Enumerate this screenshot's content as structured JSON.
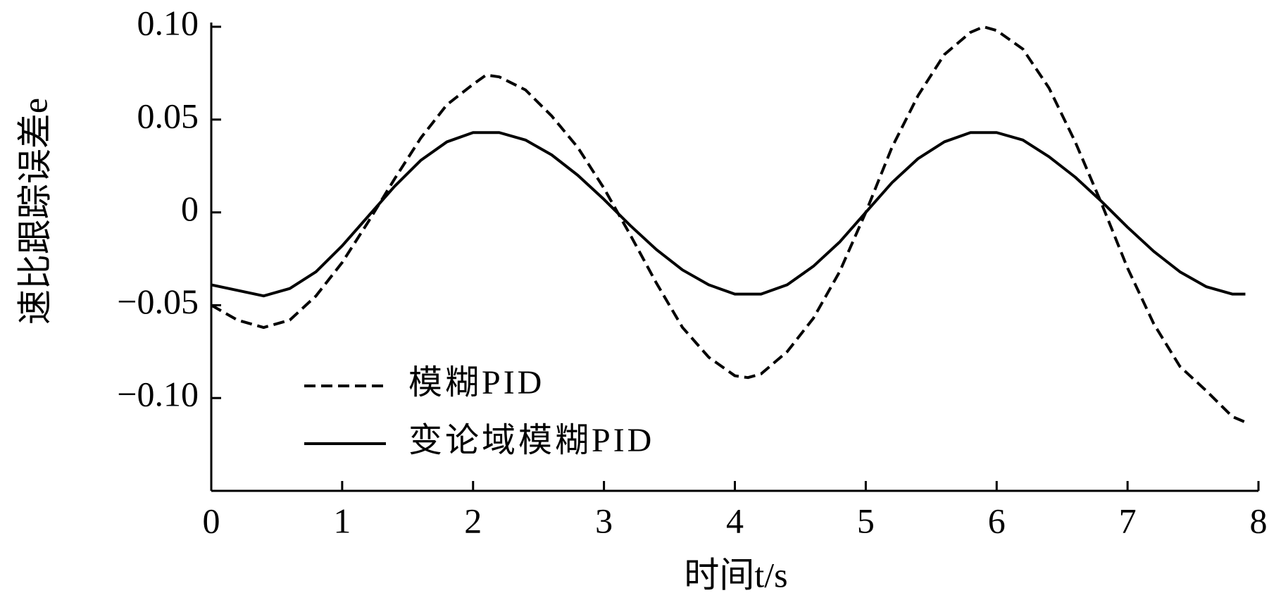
{
  "chart_data": {
    "type": "line",
    "xlabel": "时间t/s",
    "ylabel": "速比跟踪误差e",
    "x": [
      0,
      0.2,
      0.4,
      0.6,
      0.8,
      1.0,
      1.2,
      1.4,
      1.6,
      1.8,
      2.0,
      2.1,
      2.2,
      2.4,
      2.6,
      2.8,
      3.0,
      3.2,
      3.4,
      3.6,
      3.8,
      4.0,
      4.1,
      4.2,
      4.4,
      4.6,
      4.8,
      5.0,
      5.2,
      5.4,
      5.6,
      5.8,
      5.9,
      6.0,
      6.2,
      6.4,
      6.6,
      6.8,
      7.0,
      7.2,
      7.4,
      7.6,
      7.8,
      7.9
    ],
    "series": [
      {
        "name": "模糊PID",
        "color": "#000000",
        "dash": true,
        "values": [
          -0.05,
          -0.058,
          -0.062,
          -0.058,
          -0.045,
          -0.027,
          -0.005,
          0.018,
          0.04,
          0.058,
          0.069,
          0.074,
          0.073,
          0.066,
          0.052,
          0.035,
          0.013,
          -0.012,
          -0.038,
          -0.062,
          -0.078,
          -0.088,
          -0.089,
          -0.087,
          -0.075,
          -0.057,
          -0.032,
          0.0,
          0.035,
          0.063,
          0.085,
          0.097,
          0.1,
          0.098,
          0.088,
          0.067,
          0.038,
          0.005,
          -0.03,
          -0.06,
          -0.083,
          -0.096,
          -0.11,
          -0.113
        ]
      },
      {
        "name": "变论域模糊PID",
        "color": "#000000",
        "dash": false,
        "values": [
          -0.039,
          -0.042,
          -0.045,
          -0.041,
          -0.032,
          -0.018,
          -0.002,
          0.014,
          0.028,
          0.038,
          0.043,
          0.043,
          0.043,
          0.039,
          0.031,
          0.02,
          0.007,
          -0.007,
          -0.02,
          -0.031,
          -0.039,
          -0.044,
          -0.044,
          -0.044,
          -0.039,
          -0.029,
          -0.016,
          0.0,
          0.016,
          0.029,
          0.038,
          0.043,
          0.043,
          0.043,
          0.039,
          0.03,
          0.019,
          0.006,
          -0.008,
          -0.021,
          -0.032,
          -0.04,
          -0.044,
          -0.044
        ]
      }
    ],
    "xlim": [
      0,
      8
    ],
    "xticks": [
      0,
      1,
      2,
      3,
      4,
      5,
      6,
      7,
      8
    ],
    "ylim": [
      -0.15,
      0.1
    ],
    "yticks": [
      {
        "value": 0.1,
        "label": "0.10"
      },
      {
        "value": 0.05,
        "label": "0.05"
      },
      0,
      {
        "value": -0.05,
        "label": "−0.05"
      },
      {
        "value": -0.1,
        "label": "−0.10"
      }
    ],
    "grid": false
  }
}
